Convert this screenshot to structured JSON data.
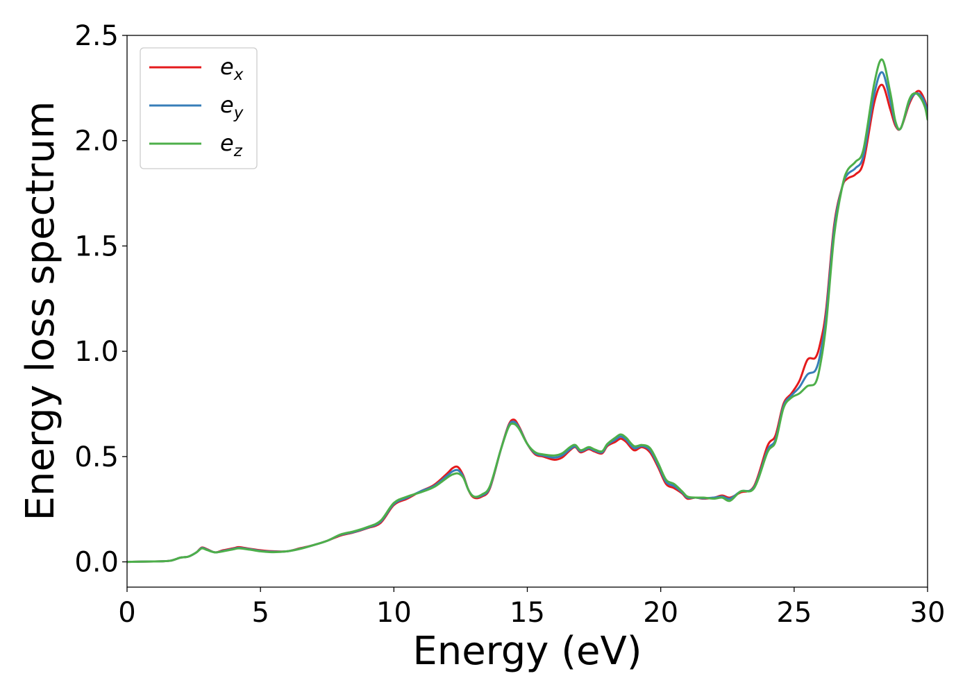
{
  "chart_data": {
    "type": "line",
    "title": "",
    "xlabel": "Energy (eV)",
    "ylabel": "Energy loss spectrum",
    "xlim": [
      0,
      30
    ],
    "ylim": [
      -0.12,
      2.5
    ],
    "xticks": [
      0,
      5,
      10,
      15,
      20,
      25,
      30
    ],
    "xtick_labels": [
      "0",
      "5",
      "10",
      "15",
      "20",
      "25",
      "30"
    ],
    "yticks": [
      0.0,
      0.5,
      1.0,
      1.5,
      2.0,
      2.5
    ],
    "ytick_labels": [
      "0.0",
      "0.5",
      "1.0",
      "1.5",
      "2.0",
      "2.5"
    ],
    "grid": false,
    "legend_position": "top-left",
    "series": [
      {
        "name": "e_x",
        "legend_base": "e",
        "legend_sub": "x",
        "color": "#e41a1c",
        "x": [
          0,
          1,
          1.6,
          2,
          2.3,
          2.6,
          2.8,
          3.0,
          3.3,
          3.6,
          4.0,
          4.2,
          4.6,
          5.0,
          5.5,
          6.0,
          6.5,
          7.0,
          7.5,
          8.0,
          8.5,
          9.0,
          9.5,
          10.0,
          10.5,
          11.0,
          11.5,
          12.0,
          12.2,
          12.4,
          12.6,
          12.8,
          13.0,
          13.3,
          13.6,
          14.0,
          14.3,
          14.5,
          14.7,
          15.0,
          15.3,
          15.6,
          16.0,
          16.3,
          16.6,
          16.8,
          17.0,
          17.3,
          17.5,
          17.8,
          18.0,
          18.3,
          18.5,
          18.7,
          19.0,
          19.3,
          19.6,
          19.9,
          20.2,
          20.5,
          20.8,
          21.0,
          21.3,
          21.6,
          22.0,
          22.3,
          22.6,
          23.0,
          23.5,
          24.0,
          24.3,
          24.6,
          24.9,
          25.2,
          25.5,
          25.8,
          26.0,
          26.2,
          26.5,
          26.8,
          27.0,
          27.3,
          27.6,
          28.0,
          28.3,
          28.6,
          28.8,
          29.0,
          29.3,
          29.5,
          29.7,
          29.9,
          30
        ],
        "y": [
          0,
          0.002,
          0.005,
          0.02,
          0.025,
          0.045,
          0.068,
          0.06,
          0.045,
          0.055,
          0.065,
          0.07,
          0.062,
          0.055,
          0.05,
          0.05,
          0.065,
          0.08,
          0.1,
          0.125,
          0.14,
          0.16,
          0.185,
          0.27,
          0.3,
          0.335,
          0.365,
          0.42,
          0.445,
          0.45,
          0.41,
          0.34,
          0.305,
          0.31,
          0.35,
          0.53,
          0.65,
          0.675,
          0.64,
          0.56,
          0.51,
          0.5,
          0.485,
          0.495,
          0.53,
          0.545,
          0.52,
          0.535,
          0.525,
          0.515,
          0.55,
          0.57,
          0.585,
          0.57,
          0.53,
          0.545,
          0.52,
          0.45,
          0.37,
          0.35,
          0.325,
          0.3,
          0.305,
          0.3,
          0.305,
          0.315,
          0.305,
          0.33,
          0.36,
          0.55,
          0.6,
          0.75,
          0.8,
          0.86,
          0.96,
          0.97,
          1.05,
          1.2,
          1.6,
          1.78,
          1.82,
          1.84,
          1.9,
          2.18,
          2.265,
          2.15,
          2.07,
          2.06,
          2.17,
          2.22,
          2.235,
          2.19,
          2.14
        ]
      },
      {
        "name": "e_y",
        "legend_base": "e",
        "legend_sub": "y",
        "color": "#377eb8",
        "x": [
          0,
          1,
          1.6,
          2,
          2.3,
          2.6,
          2.8,
          3.0,
          3.3,
          3.6,
          4.0,
          4.2,
          4.6,
          5.0,
          5.5,
          6.0,
          6.5,
          7.0,
          7.5,
          8.0,
          8.5,
          9.0,
          9.5,
          10.0,
          10.5,
          11.0,
          11.5,
          12.0,
          12.2,
          12.4,
          12.6,
          12.8,
          13.0,
          13.3,
          13.6,
          14.0,
          14.3,
          14.5,
          14.7,
          15.0,
          15.3,
          15.6,
          16.0,
          16.3,
          16.6,
          16.8,
          17.0,
          17.3,
          17.5,
          17.8,
          18.0,
          18.3,
          18.5,
          18.7,
          19.0,
          19.3,
          19.6,
          19.9,
          20.2,
          20.5,
          20.8,
          21.0,
          21.3,
          21.6,
          22.0,
          22.3,
          22.6,
          23.0,
          23.5,
          24.0,
          24.3,
          24.6,
          24.9,
          25.2,
          25.5,
          25.8,
          26.0,
          26.2,
          26.5,
          26.8,
          27.0,
          27.3,
          27.6,
          28.0,
          28.3,
          28.6,
          28.8,
          29.0,
          29.3,
          29.5,
          29.7,
          29.9,
          30
        ],
        "y": [
          0,
          0.002,
          0.005,
          0.02,
          0.025,
          0.045,
          0.066,
          0.058,
          0.045,
          0.052,
          0.062,
          0.066,
          0.06,
          0.052,
          0.048,
          0.05,
          0.063,
          0.08,
          0.1,
          0.128,
          0.142,
          0.162,
          0.19,
          0.275,
          0.305,
          0.335,
          0.36,
          0.41,
          0.43,
          0.435,
          0.405,
          0.34,
          0.31,
          0.315,
          0.355,
          0.53,
          0.645,
          0.665,
          0.635,
          0.56,
          0.515,
          0.505,
          0.495,
          0.505,
          0.535,
          0.548,
          0.525,
          0.54,
          0.53,
          0.52,
          0.555,
          0.58,
          0.595,
          0.58,
          0.54,
          0.55,
          0.53,
          0.46,
          0.38,
          0.36,
          0.33,
          0.305,
          0.305,
          0.302,
          0.305,
          0.31,
          0.3,
          0.335,
          0.355,
          0.53,
          0.58,
          0.74,
          0.79,
          0.83,
          0.89,
          0.91,
          1.0,
          1.17,
          1.58,
          1.78,
          1.84,
          1.87,
          1.93,
          2.22,
          2.325,
          2.19,
          2.08,
          2.06,
          2.18,
          2.22,
          2.22,
          2.18,
          2.12
        ]
      },
      {
        "name": "e_z",
        "legend_base": "e",
        "legend_sub": "z",
        "color": "#4daf4a",
        "x": [
          0,
          1,
          1.6,
          2,
          2.3,
          2.6,
          2.8,
          3.0,
          3.3,
          3.6,
          4.0,
          4.2,
          4.6,
          5.0,
          5.5,
          6.0,
          6.5,
          7.0,
          7.5,
          8.0,
          8.5,
          9.0,
          9.5,
          10.0,
          10.5,
          11.0,
          11.5,
          12.0,
          12.2,
          12.4,
          12.6,
          12.8,
          13.0,
          13.3,
          13.6,
          14.0,
          14.3,
          14.5,
          14.7,
          15.0,
          15.3,
          15.6,
          16.0,
          16.3,
          16.6,
          16.8,
          17.0,
          17.3,
          17.5,
          17.8,
          18.0,
          18.3,
          18.5,
          18.7,
          19.0,
          19.3,
          19.6,
          19.9,
          20.2,
          20.5,
          20.8,
          21.0,
          21.3,
          21.6,
          22.0,
          22.3,
          22.6,
          23.0,
          23.5,
          24.0,
          24.3,
          24.6,
          24.9,
          25.2,
          25.5,
          25.8,
          26.0,
          26.2,
          26.5,
          26.8,
          27.0,
          27.3,
          27.6,
          28.0,
          28.3,
          28.6,
          28.8,
          29.0,
          29.3,
          29.5,
          29.7,
          29.9,
          30
        ],
        "y": [
          0,
          0.002,
          0.005,
          0.02,
          0.025,
          0.045,
          0.064,
          0.056,
          0.045,
          0.05,
          0.06,
          0.064,
          0.058,
          0.05,
          0.046,
          0.05,
          0.062,
          0.08,
          0.1,
          0.13,
          0.145,
          0.165,
          0.195,
          0.28,
          0.31,
          0.33,
          0.355,
          0.4,
          0.415,
          0.42,
          0.4,
          0.34,
          0.31,
          0.32,
          0.36,
          0.53,
          0.64,
          0.655,
          0.63,
          0.56,
          0.52,
          0.51,
          0.505,
          0.515,
          0.545,
          0.555,
          0.53,
          0.545,
          0.535,
          0.525,
          0.56,
          0.59,
          0.605,
          0.59,
          0.55,
          0.555,
          0.54,
          0.47,
          0.39,
          0.37,
          0.335,
          0.31,
          0.305,
          0.305,
          0.3,
          0.305,
          0.29,
          0.335,
          0.35,
          0.52,
          0.57,
          0.73,
          0.78,
          0.8,
          0.835,
          0.85,
          0.95,
          1.13,
          1.55,
          1.78,
          1.86,
          1.9,
          1.96,
          2.27,
          2.385,
          2.23,
          2.09,
          2.06,
          2.19,
          2.225,
          2.21,
          2.16,
          2.1
        ]
      }
    ]
  }
}
